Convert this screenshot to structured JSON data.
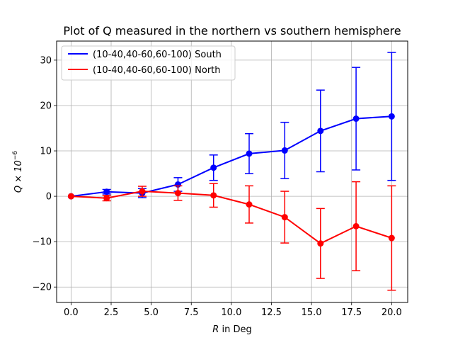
{
  "chart_data": {
    "type": "line",
    "title": "Plot of Q measured in the northern vs southern hemisphere",
    "xlabel_italic": "R",
    "xlabel_rest": " in Deg",
    "ylabel_base": "Q × 10",
    "ylabel_exp": "−6",
    "xlim": [
      -0.9,
      21.0
    ],
    "ylim": [
      -23.4,
      34.2
    ],
    "xticks": [
      0.0,
      2.5,
      5.0,
      7.5,
      10.0,
      12.5,
      15.0,
      17.5,
      20.0
    ],
    "xtick_labels": [
      "0.0",
      "2.5",
      "5.0",
      "7.5",
      "10.0",
      "12.5",
      "15.0",
      "17.5",
      "20.0"
    ],
    "yticks": [
      -20,
      -10,
      0,
      10,
      20,
      30
    ],
    "ytick_labels": [
      "−20",
      "−10",
      "0",
      "10",
      "20",
      "30"
    ],
    "grid": true,
    "legend_position": "upper-left",
    "series": [
      {
        "name": "(10-40,40-60,60-100) South",
        "color": "#0000ff",
        "x": [
          0.0,
          2.22,
          4.44,
          6.67,
          8.89,
          11.11,
          13.33,
          15.56,
          17.78,
          20.0
        ],
        "y": [
          0.0,
          1.0,
          0.7,
          2.6,
          6.3,
          9.4,
          10.1,
          14.4,
          17.1,
          17.6
        ],
        "yerr": [
          0.0,
          0.5,
          1.0,
          1.5,
          2.8,
          4.4,
          6.2,
          9.0,
          11.3,
          14.1
        ]
      },
      {
        "name": "(10-40,40-60,60-100) North",
        "color": "#ff0000",
        "x": [
          0.0,
          2.22,
          4.44,
          6.67,
          8.89,
          11.11,
          13.33,
          15.56,
          17.78,
          20.0
        ],
        "y": [
          0.0,
          -0.4,
          1.1,
          0.7,
          0.2,
          -1.8,
          -4.6,
          -10.4,
          -6.6,
          -9.2
        ],
        "yerr": [
          0.0,
          0.6,
          1.1,
          1.6,
          2.6,
          4.1,
          5.7,
          7.7,
          9.8,
          11.5
        ]
      }
    ]
  }
}
